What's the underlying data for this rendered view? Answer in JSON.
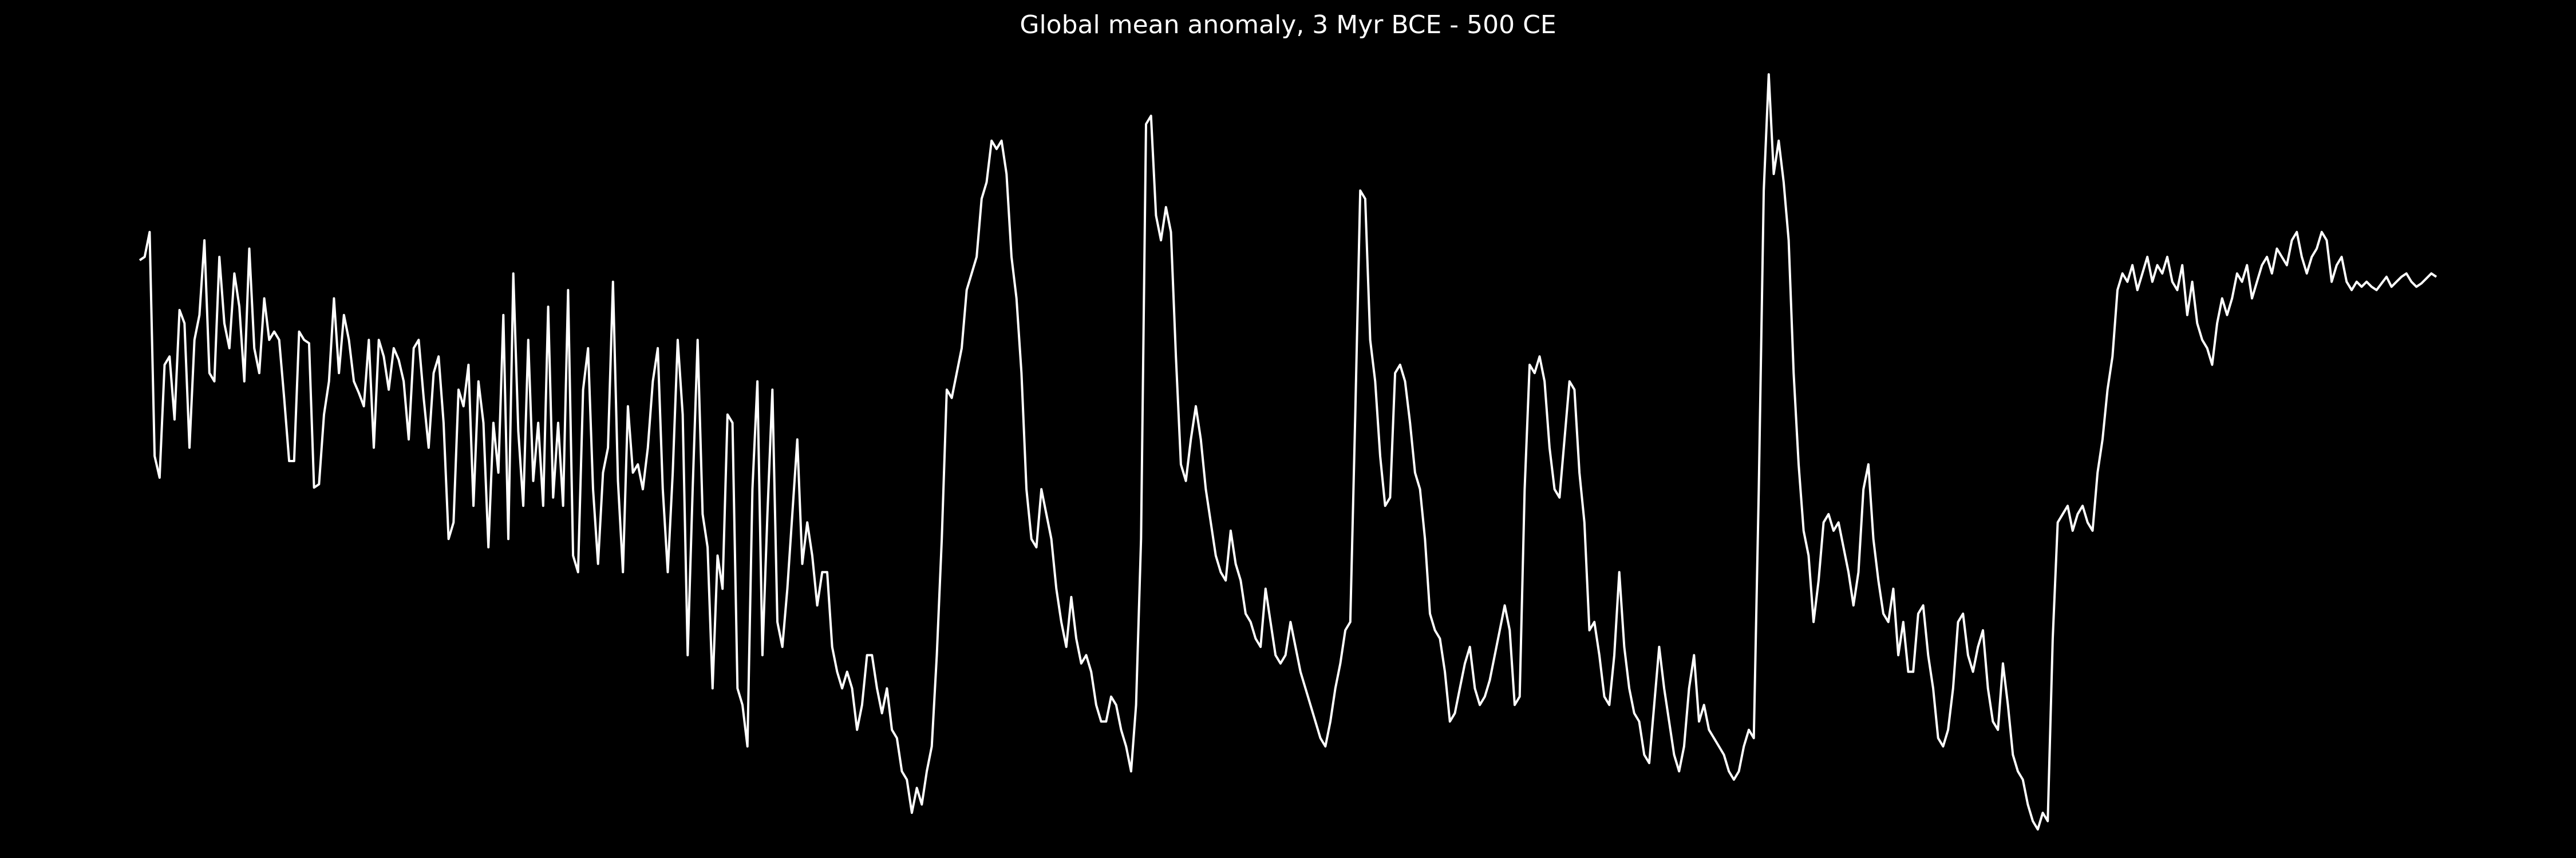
{
  "chart_data": {
    "type": "line",
    "title": "Global mean anomaly, 3 Myr BCE - 500 CE",
    "color": "#ffffff",
    "background": "#000000",
    "values": [
      358,
      360,
      375,
      240,
      227,
      295,
      300,
      262,
      328,
      320,
      245,
      310,
      325,
      370,
      290,
      285,
      360,
      320,
      305,
      350,
      330,
      285,
      365,
      305,
      290,
      335,
      310,
      315,
      310,
      275,
      237,
      237,
      315,
      310,
      308,
      221,
      223,
      265,
      285,
      335,
      290,
      325,
      310,
      285,
      278,
      270,
      310,
      245,
      310,
      300,
      280,
      305,
      298,
      285,
      250,
      305,
      310,
      275,
      245,
      290,
      300,
      260,
      190,
      200,
      280,
      270,
      295,
      210,
      285,
      260,
      185,
      260,
      230,
      325,
      190,
      350,
      255,
      210,
      310,
      225,
      260,
      210,
      330,
      215,
      260,
      210,
      340,
      180,
      170,
      280,
      305,
      220,
      175,
      230,
      245,
      345,
      225,
      170,
      270,
      230,
      235,
      220,
      245,
      285,
      305,
      220,
      170,
      230,
      310,
      265,
      120,
      220,
      310,
      205,
      185,
      100,
      180,
      160,
      265,
      260,
      100,
      90,
      65,
      220,
      285,
      120,
      205,
      280,
      140,
      125,
      160,
      205,
      250,
      175,
      200,
      180,
      150,
      170,
      170,
      125,
      110,
      100,
      110,
      100,
      75,
      90,
      120,
      120,
      100,
      85,
      100,
      75,
      70,
      50,
      45,
      25,
      40,
      30,
      50,
      65,
      120,
      190,
      280,
      275,
      290,
      305,
      340,
      350,
      360,
      395,
      405,
      430,
      425,
      430,
      410,
      360,
      335,
      290,
      220,
      190,
      185,
      220,
      205,
      190,
      160,
      140,
      125,
      155,
      130,
      115,
      120,
      110,
      90,
      80,
      80,
      95,
      90,
      75,
      65,
      50,
      90,
      190,
      440,
      445,
      385,
      370,
      390,
      375,
      300,
      235,
      225,
      250,
      270,
      250,
      220,
      200,
      180,
      170,
      165,
      195,
      175,
      165,
      145,
      140,
      130,
      125,
      160,
      140,
      120,
      115,
      120,
      140,
      125,
      110,
      100,
      90,
      80,
      70,
      65,
      80,
      100,
      115,
      135,
      140,
      265,
      400,
      395,
      310,
      285,
      240,
      210,
      215,
      290,
      295,
      285,
      260,
      230,
      220,
      190,
      145,
      135,
      130,
      110,
      80,
      85,
      100,
      115,
      125,
      100,
      90,
      95,
      105,
      120,
      135,
      150,
      135,
      90,
      95,
      220,
      295,
      290,
      300,
      285,
      245,
      220,
      215,
      250,
      285,
      280,
      230,
      200,
      135,
      140,
      120,
      95,
      90,
      120,
      170,
      125,
      100,
      85,
      80,
      60,
      55,
      90,
      125,
      100,
      80,
      60,
      50,
      65,
      100,
      120,
      80,
      90,
      75,
      70,
      65,
      60,
      50,
      45,
      50,
      65,
      75,
      70,
      220,
      400,
      470,
      410,
      430,
      405,
      370,
      290,
      235,
      195,
      180,
      140,
      165,
      200,
      205,
      195,
      200,
      185,
      170,
      150,
      170,
      220,
      235,
      190,
      165,
      145,
      140,
      160,
      120,
      140,
      110,
      110,
      145,
      150,
      120,
      100,
      70,
      65,
      75,
      100,
      140,
      145,
      120,
      110,
      125,
      135,
      100,
      80,
      75,
      115,
      90,
      60,
      50,
      45,
      30,
      20,
      15,
      25,
      20,
      130,
      200,
      205,
      210,
      195,
      205,
      210,
      200,
      195,
      230,
      250,
      280,
      300,
      340,
      350,
      345,
      355,
      340,
      350,
      360,
      345,
      355,
      350,
      360,
      345,
      340,
      355,
      325,
      345,
      320,
      310,
      305,
      295,
      320,
      335,
      325,
      335,
      350,
      345,
      355,
      335,
      345,
      355,
      360,
      350,
      365,
      360,
      355,
      370,
      375,
      360,
      350,
      360,
      365,
      375,
      370,
      345,
      355,
      360,
      345,
      340,
      345,
      342,
      345,
      342,
      340,
      344,
      348,
      342,
      345,
      348,
      350,
      345,
      342,
      344,
      347,
      350,
      348
    ]
  }
}
